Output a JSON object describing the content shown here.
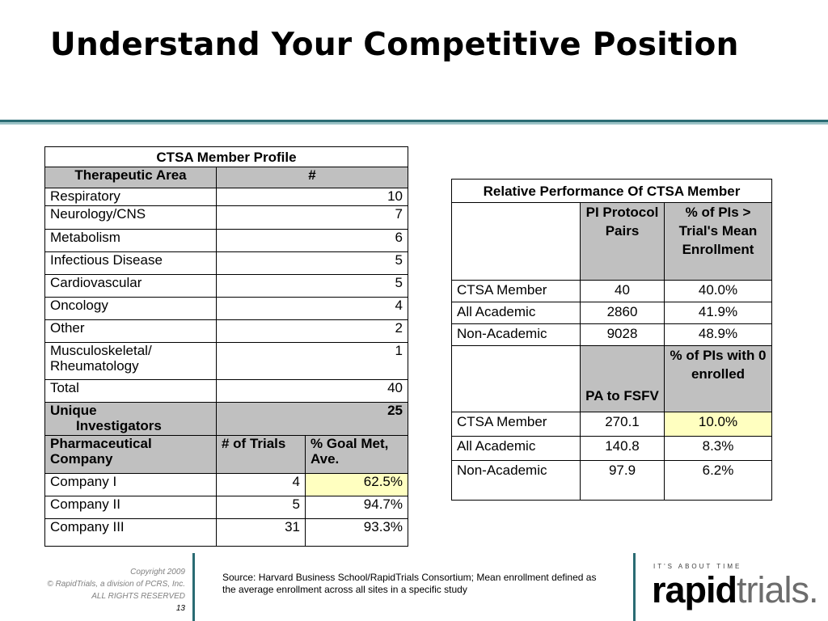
{
  "title": "Understand Your Competitive Position",
  "left_table": {
    "caption": "CTSA Member Profile",
    "header": {
      "area": "Therapeutic Area",
      "count": "#"
    },
    "rows": [
      {
        "area": "Respiratory",
        "count": "10"
      },
      {
        "area": "Neurology/CNS",
        "count": "7"
      },
      {
        "area": "Metabolism",
        "count": "6"
      },
      {
        "area": "Infectious Disease",
        "count": "5"
      },
      {
        "area": "Cardiovascular",
        "count": "5"
      },
      {
        "area": "Oncology",
        "count": "4"
      },
      {
        "area": "Other",
        "count": "2"
      },
      {
        "area": "Musculoskeletal/ Rheumatology",
        "count": "1"
      }
    ],
    "total": {
      "label": "Total",
      "count": "40"
    },
    "unique": {
      "label_line1": "Unique",
      "label_line2": "Investigators",
      "count": "25"
    },
    "pharma_header": {
      "company": "Pharmaceutical Company",
      "trials": "# of Trials",
      "goal": "% Goal Met, Ave."
    },
    "pharma_rows": [
      {
        "company": "Company I",
        "trials": "4",
        "goal": "62.5%"
      },
      {
        "company": "Company II",
        "trials": "5",
        "goal": "94.7%"
      },
      {
        "company": "Company III",
        "trials": "31",
        "goal": "93.3%"
      }
    ]
  },
  "right_table": {
    "caption": "Relative Performance Of CTSA Member",
    "header1": {
      "col1": "PI Protocol Pairs",
      "col2": "% of PIs > Trial's Mean Enrollment"
    },
    "rows1": [
      {
        "label": "CTSA Member",
        "v1": "40",
        "v2": "40.0%"
      },
      {
        "label": "All Academic",
        "v1": "2860",
        "v2": "41.9%"
      },
      {
        "label": "Non-Academic",
        "v1": "9028",
        "v2": "48.9%"
      }
    ],
    "header2": {
      "col1": "PA to FSFV",
      "col2": "% of PIs with 0 enrolled"
    },
    "rows2": [
      {
        "label": "CTSA Member",
        "v1": "270.1",
        "v2": "10.0%"
      },
      {
        "label": "All Academic",
        "v1": "140.8",
        "v2": "8.3%"
      },
      {
        "label": "Non-Academic",
        "v1": "97.9",
        "v2": "6.2%"
      }
    ]
  },
  "footer": {
    "copyright": "Copyright 2009",
    "company": "© RapidTrials, a division of PCRS, Inc.",
    "rights": "ALL RIGHTS RESERVED",
    "page": "13",
    "source": "Source: Harvard Business School/RapidTrials Consortium; Mean enrollment defined as the average enrollment across all sites in a specific study"
  },
  "logo": {
    "tagline": "IT'S ABOUT TIME",
    "word1": "rapid",
    "word2": "trials."
  },
  "colors": {
    "rule_dark": "#2a6b73",
    "rule_light": "#9bc2c6",
    "header_gray": "#c0c0c0",
    "highlight_yellow": "#ffffc0"
  }
}
